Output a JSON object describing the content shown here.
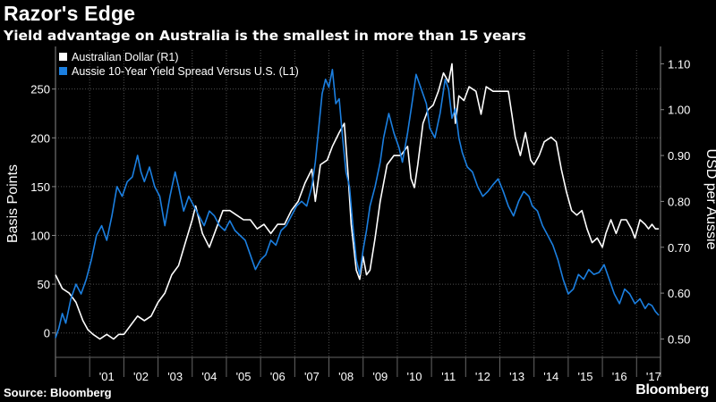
{
  "title": "Razor's Edge",
  "subtitle": "Yield advantage on Australia is the smallest in more than 15 years",
  "source": "Source: Bloomberg",
  "brand": "Bloomberg",
  "colors": {
    "background": "#000000",
    "aud_line": "#ffffff",
    "spread_line": "#1b7fe0",
    "grid": "#4d4d4d",
    "axis_text": "#ffffff"
  },
  "chart_data": {
    "type": "line",
    "ylabel_left": "Basis Points",
    "ylabel_right": "USD per Aussie",
    "ylim_left": [
      -25,
      290
    ],
    "ylim_right": [
      0.46,
      1.13
    ],
    "xlim": [
      2000.0,
      2017.7
    ],
    "left_ticks": [
      "0",
      "50",
      "100",
      "150",
      "200",
      "250"
    ],
    "right_ticks": [
      "0.50",
      "0.60",
      "0.70",
      "0.80",
      "0.90",
      "1.00",
      "1.10"
    ],
    "x_ticks": [
      "'01",
      "'02",
      "'03",
      "'04",
      "'05",
      "'06",
      "'07",
      "'08",
      "'09",
      "'10",
      "'11",
      "'12",
      "'13",
      "'14",
      "'15",
      "'16",
      "'17"
    ],
    "x_tick_years": [
      2001,
      2002,
      2003,
      2004,
      2005,
      2006,
      2007,
      2008,
      2009,
      2010,
      2011,
      2012,
      2013,
      2014,
      2015,
      2016,
      2017
    ],
    "grid": true,
    "legend_position": "top-left",
    "series": [
      {
        "name": "Australian Dollar (R1)",
        "axis": "right",
        "points": [
          [
            2000.0,
            0.64
          ],
          [
            2000.2,
            0.61
          ],
          [
            2000.4,
            0.6
          ],
          [
            2000.6,
            0.58
          ],
          [
            2000.8,
            0.54
          ],
          [
            2000.95,
            0.52
          ],
          [
            2001.1,
            0.51
          ],
          [
            2001.3,
            0.5
          ],
          [
            2001.5,
            0.51
          ],
          [
            2001.7,
            0.5
          ],
          [
            2001.85,
            0.51
          ],
          [
            2002.0,
            0.51
          ],
          [
            2002.2,
            0.53
          ],
          [
            2002.4,
            0.55
          ],
          [
            2002.6,
            0.54
          ],
          [
            2002.8,
            0.55
          ],
          [
            2003.0,
            0.58
          ],
          [
            2003.2,
            0.6
          ],
          [
            2003.4,
            0.64
          ],
          [
            2003.6,
            0.66
          ],
          [
            2003.8,
            0.71
          ],
          [
            2004.0,
            0.76
          ],
          [
            2004.1,
            0.79
          ],
          [
            2004.3,
            0.73
          ],
          [
            2004.5,
            0.7
          ],
          [
            2004.7,
            0.74
          ],
          [
            2004.9,
            0.78
          ],
          [
            2005.1,
            0.78
          ],
          [
            2005.3,
            0.77
          ],
          [
            2005.5,
            0.76
          ],
          [
            2005.7,
            0.76
          ],
          [
            2005.9,
            0.74
          ],
          [
            2006.1,
            0.75
          ],
          [
            2006.3,
            0.73
          ],
          [
            2006.5,
            0.75
          ],
          [
            2006.7,
            0.75
          ],
          [
            2006.9,
            0.78
          ],
          [
            2007.1,
            0.8
          ],
          [
            2007.3,
            0.84
          ],
          [
            2007.5,
            0.87
          ],
          [
            2007.6,
            0.8
          ],
          [
            2007.75,
            0.88
          ],
          [
            2007.95,
            0.89
          ],
          [
            2008.1,
            0.92
          ],
          [
            2008.3,
            0.95
          ],
          [
            2008.45,
            0.97
          ],
          [
            2008.55,
            0.87
          ],
          [
            2008.65,
            0.75
          ],
          [
            2008.8,
            0.65
          ],
          [
            2008.9,
            0.63
          ],
          [
            2009.0,
            0.68
          ],
          [
            2009.1,
            0.64
          ],
          [
            2009.2,
            0.65
          ],
          [
            2009.35,
            0.72
          ],
          [
            2009.5,
            0.8
          ],
          [
            2009.7,
            0.88
          ],
          [
            2009.9,
            0.9
          ],
          [
            2010.1,
            0.9
          ],
          [
            2010.3,
            0.92
          ],
          [
            2010.4,
            0.85
          ],
          [
            2010.5,
            0.83
          ],
          [
            2010.6,
            0.88
          ],
          [
            2010.75,
            0.97
          ],
          [
            2010.9,
            1.0
          ],
          [
            2011.05,
            1.01
          ],
          [
            2011.2,
            1.04
          ],
          [
            2011.35,
            1.08
          ],
          [
            2011.5,
            1.06
          ],
          [
            2011.6,
            1.1
          ],
          [
            2011.7,
            0.97
          ],
          [
            2011.8,
            1.03
          ],
          [
            2011.95,
            1.02
          ],
          [
            2012.1,
            1.05
          ],
          [
            2012.3,
            1.04
          ],
          [
            2012.45,
            0.99
          ],
          [
            2012.6,
            1.05
          ],
          [
            2012.8,
            1.04
          ],
          [
            2012.95,
            1.04
          ],
          [
            2013.1,
            1.04
          ],
          [
            2013.25,
            1.04
          ],
          [
            2013.35,
            0.99
          ],
          [
            2013.45,
            0.94
          ],
          [
            2013.6,
            0.9
          ],
          [
            2013.75,
            0.95
          ],
          [
            2013.9,
            0.89
          ],
          [
            2014.0,
            0.88
          ],
          [
            2014.15,
            0.9
          ],
          [
            2014.3,
            0.93
          ],
          [
            2014.5,
            0.94
          ],
          [
            2014.65,
            0.93
          ],
          [
            2014.8,
            0.87
          ],
          [
            2014.95,
            0.82
          ],
          [
            2015.1,
            0.78
          ],
          [
            2015.25,
            0.77
          ],
          [
            2015.4,
            0.78
          ],
          [
            2015.55,
            0.74
          ],
          [
            2015.7,
            0.71
          ],
          [
            2015.85,
            0.72
          ],
          [
            2016.0,
            0.7
          ],
          [
            2016.1,
            0.73
          ],
          [
            2016.25,
            0.76
          ],
          [
            2016.4,
            0.73
          ],
          [
            2016.55,
            0.76
          ],
          [
            2016.7,
            0.76
          ],
          [
            2016.85,
            0.74
          ],
          [
            2016.95,
            0.72
          ],
          [
            2017.1,
            0.76
          ],
          [
            2017.25,
            0.75
          ],
          [
            2017.35,
            0.74
          ],
          [
            2017.45,
            0.75
          ],
          [
            2017.55,
            0.74
          ],
          [
            2017.65,
            0.74
          ]
        ]
      },
      {
        "name": "Aussie 10-Year Yield Spread Versus U.S. (L1)",
        "axis": "left",
        "points": [
          [
            2000.0,
            -5
          ],
          [
            2000.1,
            5
          ],
          [
            2000.2,
            20
          ],
          [
            2000.3,
            10
          ],
          [
            2000.45,
            35
          ],
          [
            2000.6,
            50
          ],
          [
            2000.75,
            40
          ],
          [
            2000.9,
            55
          ],
          [
            2001.05,
            75
          ],
          [
            2001.2,
            100
          ],
          [
            2001.35,
            110
          ],
          [
            2001.5,
            95
          ],
          [
            2001.65,
            120
          ],
          [
            2001.8,
            150
          ],
          [
            2001.95,
            140
          ],
          [
            2002.1,
            155
          ],
          [
            2002.25,
            160
          ],
          [
            2002.4,
            182
          ],
          [
            2002.5,
            165
          ],
          [
            2002.6,
            155
          ],
          [
            2002.75,
            170
          ],
          [
            2002.9,
            150
          ],
          [
            2003.05,
            140
          ],
          [
            2003.2,
            110
          ],
          [
            2003.35,
            140
          ],
          [
            2003.5,
            165
          ],
          [
            2003.6,
            150
          ],
          [
            2003.75,
            125
          ],
          [
            2003.9,
            140
          ],
          [
            2004.05,
            130
          ],
          [
            2004.2,
            120
          ],
          [
            2004.35,
            110
          ],
          [
            2004.5,
            125
          ],
          [
            2004.65,
            120
          ],
          [
            2004.8,
            110
          ],
          [
            2004.95,
            105
          ],
          [
            2005.1,
            115
          ],
          [
            2005.25,
            105
          ],
          [
            2005.4,
            100
          ],
          [
            2005.55,
            95
          ],
          [
            2005.7,
            80
          ],
          [
            2005.85,
            65
          ],
          [
            2006.0,
            75
          ],
          [
            2006.15,
            80
          ],
          [
            2006.3,
            95
          ],
          [
            2006.45,
            90
          ],
          [
            2006.6,
            105
          ],
          [
            2006.75,
            110
          ],
          [
            2006.9,
            120
          ],
          [
            2007.05,
            130
          ],
          [
            2007.2,
            135
          ],
          [
            2007.35,
            130
          ],
          [
            2007.5,
            150
          ],
          [
            2007.6,
            175
          ],
          [
            2007.7,
            210
          ],
          [
            2007.8,
            245
          ],
          [
            2007.9,
            260
          ],
          [
            2008.0,
            252
          ],
          [
            2008.1,
            270
          ],
          [
            2008.2,
            235
          ],
          [
            2008.3,
            240
          ],
          [
            2008.4,
            200
          ],
          [
            2008.5,
            165
          ],
          [
            2008.6,
            150
          ],
          [
            2008.7,
            110
          ],
          [
            2008.8,
            75
          ],
          [
            2008.9,
            60
          ],
          [
            2009.0,
            85
          ],
          [
            2009.1,
            105
          ],
          [
            2009.2,
            130
          ],
          [
            2009.35,
            150
          ],
          [
            2009.5,
            175
          ],
          [
            2009.6,
            200
          ],
          [
            2009.75,
            225
          ],
          [
            2009.9,
            205
          ],
          [
            2010.05,
            190
          ],
          [
            2010.15,
            175
          ],
          [
            2010.3,
            205
          ],
          [
            2010.45,
            240
          ],
          [
            2010.55,
            265
          ],
          [
            2010.7,
            250
          ],
          [
            2010.85,
            235
          ],
          [
            2010.95,
            210
          ],
          [
            2011.1,
            200
          ],
          [
            2011.25,
            225
          ],
          [
            2011.4,
            260
          ],
          [
            2011.5,
            250
          ],
          [
            2011.6,
            220
          ],
          [
            2011.7,
            230
          ],
          [
            2011.8,
            200
          ],
          [
            2011.9,
            185
          ],
          [
            2012.05,
            170
          ],
          [
            2012.2,
            165
          ],
          [
            2012.35,
            150
          ],
          [
            2012.5,
            140
          ],
          [
            2012.65,
            145
          ],
          [
            2012.8,
            152
          ],
          [
            2012.95,
            158
          ],
          [
            2013.1,
            145
          ],
          [
            2013.25,
            130
          ],
          [
            2013.4,
            120
          ],
          [
            2013.55,
            135
          ],
          [
            2013.7,
            145
          ],
          [
            2013.85,
            140
          ],
          [
            2013.95,
            130
          ],
          [
            2014.1,
            125
          ],
          [
            2014.25,
            110
          ],
          [
            2014.4,
            100
          ],
          [
            2014.55,
            90
          ],
          [
            2014.7,
            75
          ],
          [
            2014.85,
            55
          ],
          [
            2015.0,
            40
          ],
          [
            2015.15,
            45
          ],
          [
            2015.3,
            60
          ],
          [
            2015.45,
            55
          ],
          [
            2015.6,
            65
          ],
          [
            2015.75,
            60
          ],
          [
            2015.9,
            62
          ],
          [
            2016.05,
            70
          ],
          [
            2016.2,
            55
          ],
          [
            2016.35,
            40
          ],
          [
            2016.5,
            30
          ],
          [
            2016.65,
            45
          ],
          [
            2016.8,
            40
          ],
          [
            2016.95,
            30
          ],
          [
            2017.1,
            35
          ],
          [
            2017.25,
            25
          ],
          [
            2017.35,
            30
          ],
          [
            2017.45,
            28
          ],
          [
            2017.55,
            22
          ],
          [
            2017.65,
            18
          ]
        ]
      }
    ]
  }
}
